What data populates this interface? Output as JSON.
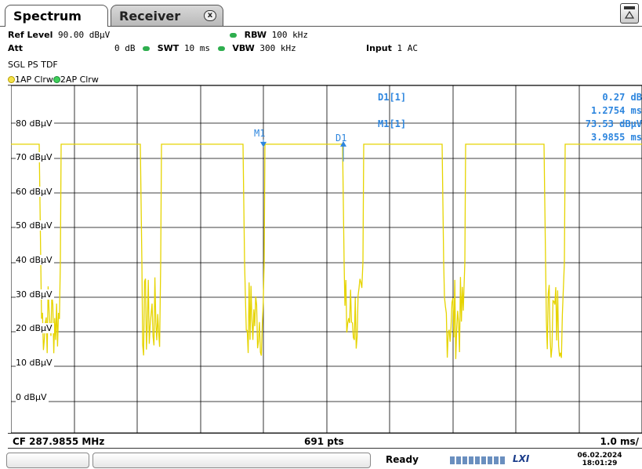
{
  "tabs": {
    "spectrum": "Spectrum",
    "receiver": "Receiver",
    "close_glyph": "x"
  },
  "settings": {
    "ref_level_label": "Ref Level",
    "ref_level_value": "90.00 dBµV",
    "att_label": "Att",
    "att_value": "0 dB",
    "swt_label": "SWT",
    "swt_value": "10 ms",
    "rbw_label": "RBW",
    "rbw_value": "100 kHz",
    "vbw_label": "VBW",
    "vbw_value": "300 kHz",
    "input_label": "Input",
    "input_value": "1 AC",
    "mode": "SGL PS TDF"
  },
  "traces": {
    "t1": "1AP Clrw",
    "t2": "2AP Clrw"
  },
  "y_labels": [
    "80 dBµV",
    "70 dBµV",
    "60 dBµV",
    "50 dBµV",
    "40 dBµV",
    "30 dBµV",
    "20 dBµV",
    "10 dBµV",
    "0 dBµV"
  ],
  "markers": {
    "m1_label": "M1",
    "d1_label": "D1",
    "d1_name": "D1[1]",
    "d1_value": "0.27 dB",
    "d1_time": "1.2754 ms",
    "m1_name": "M1[1]",
    "m1_value": "73.53 dBµV",
    "m1_time": "3.9855 ms"
  },
  "footer": {
    "cf": "CF 287.9855 MHz",
    "pts": "691 pts",
    "span": "1.0 ms/"
  },
  "status": {
    "ready": "Ready",
    "lxi": "LXI",
    "date": "06.02.2024",
    "time": "18:01:29"
  },
  "colors": {
    "trace": "#e6d400",
    "marker": "#2e86de",
    "grid": "#000000"
  },
  "corner_icon": "trace-toolbar-icon"
}
